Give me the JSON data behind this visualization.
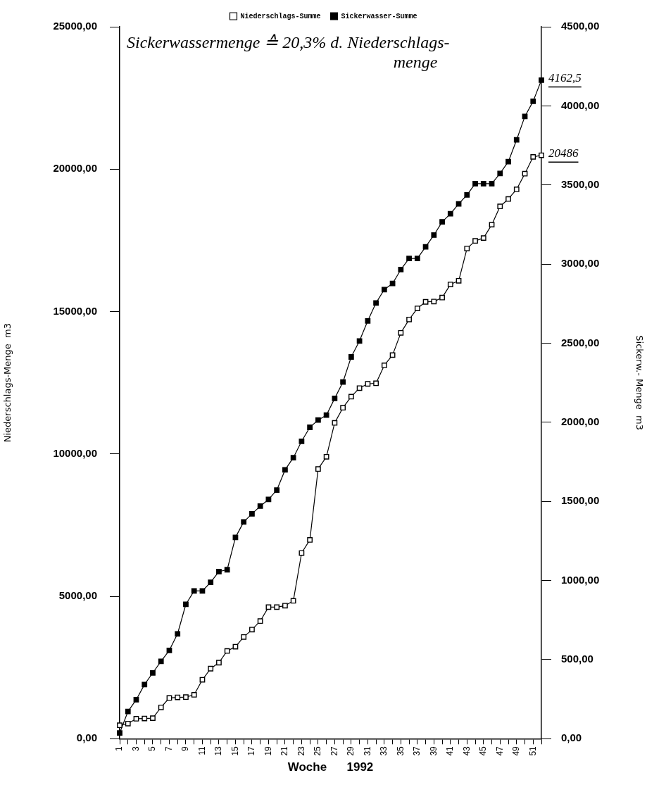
{
  "chart_data": {
    "type": "line",
    "legend": "top",
    "marker": "square",
    "line_style": "solid",
    "grid": false,
    "xlabel": "Woche      1992",
    "ylabel": "Niederschlags-Menge  m3",
    "y2label": "Sickerw.- Menge  m3",
    "annotations": [
      "Sickerwassermenge ≙ 20,3% d. Niederschlags-\nmenge"
    ],
    "categories": [
      "1",
      null,
      "3",
      null,
      "5",
      null,
      "7",
      null,
      "9",
      null,
      "11",
      null,
      "13",
      null,
      "15",
      null,
      "17",
      null,
      "19",
      null,
      "21",
      null,
      "23",
      null,
      "25",
      null,
      "27",
      null,
      "29",
      null,
      "31",
      null,
      "33",
      null,
      "35",
      null,
      "37",
      null,
      "39",
      null,
      "41",
      null,
      "43",
      null,
      "45",
      null,
      "47",
      null,
      "49",
      null,
      "51",
      null
    ],
    "ylim": [
      0,
      25000
    ],
    "yticks": [
      {
        "value": 0,
        "label": "0,00"
      },
      {
        "value": 5000,
        "label": "5000,00"
      },
      {
        "value": 10000,
        "label": "10000,00"
      },
      {
        "value": 15000,
        "label": "15000,00"
      },
      {
        "value": 20000,
        "label": "20000,00"
      },
      {
        "value": 25000,
        "label": "25000,00"
      }
    ],
    "y2lim": [
      0,
      4500
    ],
    "y2ticks": [
      {
        "value": 0,
        "label": "0,00"
      },
      {
        "value": 500,
        "label": "500,00"
      },
      {
        "value": 1000,
        "label": "1000,00"
      },
      {
        "value": 1500,
        "label": "1500,00"
      },
      {
        "value": 2000,
        "label": "2000,00"
      },
      {
        "value": 2500,
        "label": "2500,00"
      },
      {
        "value": 3000,
        "label": "3000,00"
      },
      {
        "value": 3500,
        "label": "3500,00"
      },
      {
        "value": 4000,
        "label": "4000,00"
      },
      {
        "value": 4500,
        "label": "4500,00"
      }
    ],
    "series": [
      {
        "name": "Niederschlags-Summe",
        "color": "#000000",
        "values": [
          470,
          530,
          700,
          710,
          720,
          1100,
          1430,
          1450,
          1460,
          1540,
          2070,
          2460,
          2670,
          3080,
          3230,
          3570,
          3830,
          4130,
          4620,
          4620,
          4670,
          4840,
          6520,
          6980,
          9470,
          9900,
          11090,
          11620,
          12010,
          12310,
          12460,
          12480,
          13110,
          13470,
          14250,
          14720,
          15110,
          15340,
          15350,
          15490,
          15950,
          16080,
          17210,
          17480,
          17580,
          18050,
          18690,
          18950,
          19290,
          19840,
          20430,
          20486
        ],
        "value_labels": [
          null,
          null,
          null,
          null,
          null,
          null,
          null,
          null,
          null,
          null,
          null,
          null,
          null,
          null,
          null,
          null,
          null,
          null,
          null,
          null,
          null,
          null,
          null,
          null,
          null,
          null,
          null,
          null,
          null,
          null,
          null,
          null,
          null,
          null,
          null,
          null,
          null,
          null,
          null,
          null,
          null,
          null,
          null,
          null,
          null,
          null,
          null,
          null,
          null,
          null,
          null,
          "20486"
        ]
      },
      {
        "name": "Sickerwasser-Summe",
        "color": "#000000",
        "axis": "y2",
        "values": [
          36,
          172,
          246,
          342,
          416,
          489,
          558,
          663,
          849,
          934,
          934,
          988,
          1056,
          1068,
          1272,
          1370,
          1421,
          1470,
          1512,
          1571,
          1699,
          1776,
          1880,
          1968,
          2014,
          2045,
          2151,
          2254,
          2413,
          2514,
          2641,
          2754,
          2839,
          2877,
          2965,
          3035,
          3035,
          3109,
          3183,
          3267,
          3318,
          3380,
          3437,
          3508,
          3508,
          3508,
          3573,
          3647,
          3785,
          3933,
          4029,
          4162.5
        ],
        "value_labels": [
          null,
          null,
          null,
          null,
          null,
          null,
          null,
          null,
          null,
          null,
          null,
          null,
          null,
          null,
          null,
          null,
          null,
          null,
          null,
          null,
          null,
          null,
          null,
          null,
          null,
          null,
          null,
          null,
          null,
          null,
          null,
          null,
          null,
          null,
          null,
          null,
          null,
          null,
          null,
          null,
          null,
          null,
          null,
          null,
          null,
          null,
          null,
          null,
          null,
          null,
          null,
          "4162,5"
        ]
      }
    ]
  }
}
